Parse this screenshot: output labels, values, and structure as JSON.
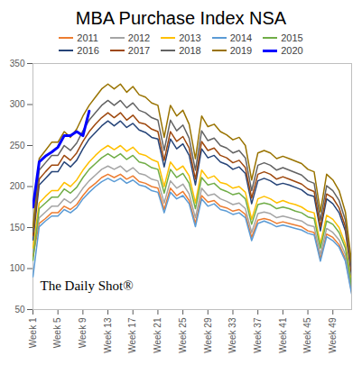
{
  "chart_data": {
    "type": "line",
    "title": "MBA Purchase Index NSA",
    "annotations": [
      "The Daily Shot®"
    ],
    "legend": "top",
    "grid": false,
    "x": [
      1,
      2,
      3,
      4,
      5,
      6,
      7,
      8,
      9,
      10,
      11,
      12,
      13,
      14,
      15,
      16,
      17,
      18,
      19,
      20,
      21,
      22,
      23,
      24,
      25,
      26,
      27,
      28,
      29,
      30,
      31,
      32,
      33,
      34,
      35,
      36,
      37,
      38,
      39,
      40,
      41,
      42,
      43,
      44,
      45,
      46,
      47,
      48,
      49,
      50,
      51,
      52
    ],
    "xlim": [
      1,
      52
    ],
    "xticks": [
      {
        "value": 1,
        "label": "Week 1"
      },
      {
        "value": 5,
        "label": "Week 5"
      },
      {
        "value": 9,
        "label": "Week 9"
      },
      {
        "value": 13,
        "label": "Week 13"
      },
      {
        "value": 17,
        "label": "Week 17"
      },
      {
        "value": 21,
        "label": "Week 21"
      },
      {
        "value": 25,
        "label": "Week 25"
      },
      {
        "value": 29,
        "label": "Week 29"
      },
      {
        "value": 33,
        "label": "Week 33"
      },
      {
        "value": 37,
        "label": "Week 37"
      },
      {
        "value": 41,
        "label": "Week 41"
      },
      {
        "value": 45,
        "label": "Week 45"
      },
      {
        "value": 49,
        "label": "Week 49"
      }
    ],
    "ylim": [
      50,
      350
    ],
    "yticks": [
      50,
      100,
      150,
      200,
      250,
      300,
      350
    ],
    "series": [
      {
        "name": "2011",
        "color": "#ed7d31",
        "values": [
          115,
          155,
          161,
          168,
          168,
          176,
          172,
          178,
          189,
          198,
          204,
          211,
          215,
          211,
          215,
          209,
          213,
          206,
          204,
          200,
          198,
          172,
          198,
          189,
          194,
          183,
          155,
          189,
          181,
          183,
          176,
          174,
          170,
          172,
          166,
          138,
          159,
          161,
          159,
          155,
          157,
          155,
          153,
          151,
          146,
          144,
          112,
          142,
          138,
          129,
          112,
          71
        ]
      },
      {
        "name": "2012",
        "color": "#a5a5a5",
        "values": [
          120,
          162,
          169,
          176,
          176,
          185,
          180,
          187,
          198,
          207,
          214,
          221,
          225,
          221,
          225,
          218,
          223,
          216,
          214,
          209,
          207,
          180,
          207,
          198,
          203,
          191,
          162,
          198,
          189,
          191,
          185,
          182,
          178,
          180,
          173,
          144,
          167,
          169,
          167,
          162,
          164,
          162,
          160,
          158,
          153,
          151,
          117,
          149,
          144,
          135,
          117,
          74
        ]
      },
      {
        "name": "2013",
        "color": "#ffc000",
        "values": [
          125,
          180,
          188,
          195,
          195,
          205,
          200,
          208,
          220,
          230,
          238,
          245,
          250,
          245,
          250,
          243,
          248,
          240,
          238,
          233,
          230,
          200,
          230,
          220,
          225,
          213,
          180,
          220,
          210,
          213,
          205,
          203,
          198,
          200,
          193,
          160,
          185,
          188,
          185,
          180,
          183,
          180,
          178,
          175,
          170,
          168,
          130,
          165,
          160,
          150,
          130,
          83
        ]
      },
      {
        "name": "2014",
        "color": "#5b9bd5",
        "values": [
          90,
          151,
          158,
          164,
          164,
          172,
          168,
          174,
          185,
          193,
          200,
          206,
          210,
          206,
          210,
          204,
          208,
          202,
          200,
          195,
          193,
          168,
          193,
          185,
          189,
          179,
          151,
          185,
          176,
          179,
          172,
          170,
          166,
          168,
          162,
          134,
          155,
          158,
          155,
          151,
          153,
          151,
          149,
          147,
          143,
          141,
          109,
          139,
          134,
          126,
          109,
          69
        ]
      },
      {
        "name": "2015",
        "color": "#70ad47",
        "values": [
          110,
          173,
          180,
          187,
          187,
          197,
          192,
          199,
          211,
          221,
          228,
          235,
          240,
          235,
          240,
          233,
          238,
          230,
          228,
          223,
          221,
          192,
          221,
          211,
          216,
          204,
          173,
          211,
          202,
          204,
          197,
          194,
          190,
          192,
          185,
          154,
          178,
          180,
          178,
          173,
          175,
          173,
          170,
          168,
          163,
          161,
          125,
          158,
          154,
          144,
          125,
          79
        ]
      },
      {
        "name": "2016",
        "color": "#264478",
        "values": [
          135,
          202,
          210,
          218,
          218,
          230,
          224,
          232,
          246,
          258,
          266,
          274,
          280,
          274,
          280,
          272,
          277,
          269,
          266,
          260,
          258,
          224,
          258,
          246,
          252,
          238,
          202,
          246,
          235,
          238,
          230,
          227,
          221,
          224,
          216,
          179,
          207,
          210,
          207,
          202,
          204,
          202,
          199,
          196,
          190,
          188,
          146,
          185,
          179,
          168,
          146,
          92
        ]
      },
      {
        "name": "2017",
        "color": "#9e480e",
        "values": [
          140,
          209,
          218,
          226,
          226,
          238,
          232,
          241,
          255,
          267,
          276,
          284,
          290,
          284,
          290,
          281,
          287,
          278,
          276,
          270,
          267,
          232,
          267,
          255,
          261,
          247,
          209,
          255,
          244,
          247,
          238,
          235,
          229,
          232,
          223,
          186,
          215,
          218,
          215,
          209,
          212,
          209,
          206,
          203,
          197,
          194,
          151,
          191,
          186,
          174,
          151,
          96
        ]
      },
      {
        "name": "2018",
        "color": "#636363",
        "values": [
          145,
          220,
          229,
          238,
          238,
          250,
          244,
          253,
          268,
          281,
          290,
          299,
          305,
          299,
          305,
          296,
          302,
          293,
          290,
          284,
          281,
          244,
          281,
          268,
          275,
          259,
          220,
          268,
          256,
          259,
          250,
          247,
          241,
          244,
          235,
          195,
          226,
          229,
          226,
          220,
          223,
          220,
          217,
          214,
          207,
          204,
          159,
          201,
          195,
          183,
          159,
          101
        ]
      },
      {
        "name": "2019",
        "color": "#997300",
        "values": [
          150,
          234,
          244,
          254,
          254,
          267,
          260,
          270,
          286,
          299,
          309,
          319,
          325,
          319,
          325,
          315,
          322,
          312,
          309,
          302,
          299,
          260,
          299,
          286,
          293,
          276,
          234,
          286,
          273,
          276,
          267,
          263,
          257,
          260,
          250,
          208,
          241,
          244,
          241,
          234,
          237,
          234,
          231,
          228,
          221,
          218,
          169,
          215,
          208,
          195,
          169,
          107
        ]
      },
      {
        "name": "2020",
        "color": "#0000ff",
        "line_style": "thick",
        "values": [
          175,
          230,
          237,
          242,
          248,
          262,
          262,
          267,
          262,
          292,
          null,
          null,
          null,
          null,
          null,
          null,
          null,
          null,
          null,
          null,
          null,
          null,
          null,
          null,
          null,
          null,
          null,
          null,
          null,
          null,
          null,
          null,
          null,
          null,
          null,
          null,
          null,
          null,
          null,
          null,
          null,
          null,
          null,
          null,
          null,
          null,
          null,
          null,
          null,
          null,
          null,
          null
        ]
      }
    ]
  }
}
